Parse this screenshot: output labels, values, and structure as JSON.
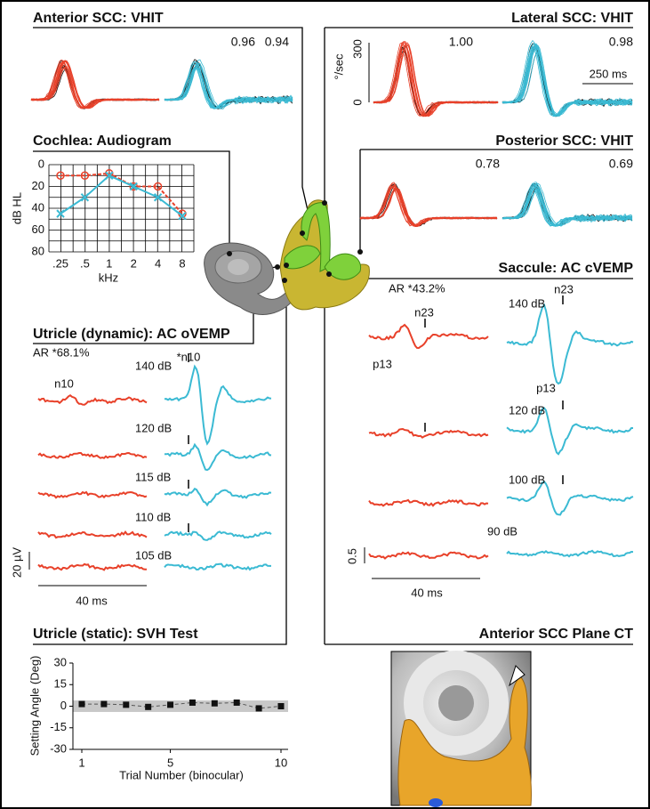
{
  "anterior_vhit": {
    "title": "Anterior SCC: VHIT",
    "gains": [
      "0.96",
      "0.94"
    ]
  },
  "lateral_vhit": {
    "title": "Lateral SCC: VHIT",
    "y_label": "°/sec",
    "y_ticks": [
      "300",
      "0"
    ],
    "scale_bar": "250 ms",
    "gains": [
      "1.00",
      "0.98"
    ]
  },
  "posterior_vhit": {
    "title": "Posterior SCC: VHIT",
    "gains": [
      "0.78",
      "0.69"
    ]
  },
  "audiogram": {
    "title": "Cochlea: Audiogram",
    "y_label": "dB HL",
    "x_label": "kHz",
    "categories": [
      ".25",
      ".5",
      "1",
      "2",
      "4",
      "8"
    ],
    "ylim": [
      0,
      80
    ],
    "yticks": [
      0,
      20,
      40,
      60,
      80
    ],
    "series": [
      {
        "color": "#e8412a",
        "values": [
          10,
          10,
          8,
          20,
          20,
          45
        ]
      },
      {
        "color": "#3bbad3",
        "values": [
          45,
          30,
          10,
          20,
          30,
          47
        ]
      }
    ]
  },
  "utricle_dynamic": {
    "title": "Utricle (dynamic): AC oVEMP",
    "ar": "AR *68.1%",
    "peak_left": "n10",
    "peak_right": "*n10",
    "levels": [
      "140 dB",
      "120 dB",
      "115 dB",
      "110 dB",
      "105 dB"
    ],
    "amp_scale": "20 µV",
    "time_scale": "40 ms"
  },
  "saccule": {
    "title": "Saccule: AC cVEMP",
    "ar": "AR *43.2%",
    "peak_left_n": "n23",
    "peak_left_p": "p13",
    "peak_right_n": "n23",
    "peak_right_p": "p13",
    "levels": [
      "140 dB",
      "120 dB",
      "100 dB",
      "90 dB"
    ],
    "amp_scale": "0.5",
    "time_scale": "40 ms"
  },
  "svh": {
    "title": "Utricle (static): SVH Test",
    "y_label": "Setting Angle (Deg)",
    "x_label": "Trial Number (binocular)",
    "ylim": [
      -30,
      30
    ],
    "yticks": [
      30,
      15,
      0,
      -15,
      -30
    ],
    "xlim": [
      1,
      10
    ],
    "xticks": [
      1,
      5,
      10
    ],
    "x": [
      1,
      2,
      3,
      4,
      5,
      6,
      7,
      8,
      9,
      10
    ],
    "values": [
      1.5,
      1.5,
      1,
      -0.5,
      1,
      2.5,
      2,
      2.5,
      -1.5,
      0
    ]
  },
  "ct": {
    "title": "Anterior SCC Plane CT"
  }
}
